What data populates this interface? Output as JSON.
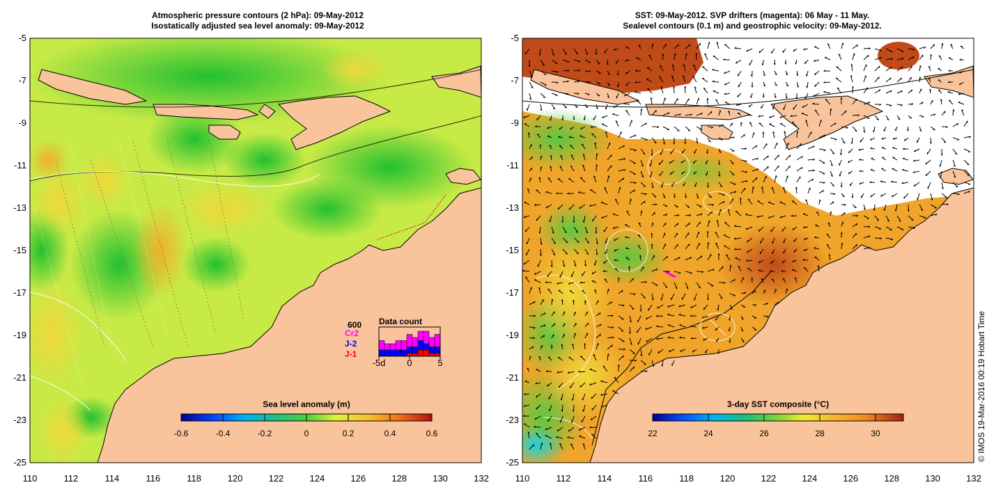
{
  "left_panel": {
    "title_line1": "Atmospheric pressure contours (2 hPa): 09-May-2012",
    "title_line2": "Isostatically adjusted sea level anomaly: 09-May-2012",
    "colorbar": {
      "label": "Sea level anomaly (m)",
      "ticks": [
        "-0.6",
        "-0.4",
        "-0.2",
        "0",
        "0.2",
        "0.4",
        "0.6"
      ],
      "tick_values": [
        -0.6,
        -0.4,
        -0.2,
        0,
        0.2,
        0.4,
        0.6
      ],
      "range": [
        -0.6,
        0.6
      ]
    },
    "data_count": {
      "title": "Data count",
      "max_label": "600",
      "legend": [
        {
          "name": "Cr2",
          "color": "#ff00ff"
        },
        {
          "name": "J-2",
          "color": "#0000ff"
        },
        {
          "name": "J-1",
          "color": "#ff0000"
        }
      ],
      "x_ticks": [
        "-5d",
        "0",
        "5"
      ],
      "x_tick_values": [
        -5,
        0,
        5
      ],
      "days": [
        -5,
        -4,
        -3,
        -2,
        -1,
        0,
        1,
        2,
        3,
        4,
        5
      ],
      "j1": [
        0,
        0,
        0,
        0,
        0,
        1,
        1,
        2,
        2,
        1,
        1
      ],
      "j2": [
        2,
        2,
        2,
        2,
        2,
        2,
        2,
        3,
        2,
        2,
        2
      ],
      "cr2": [
        3,
        2,
        2,
        3,
        3,
        4,
        3,
        3,
        4,
        3,
        4
      ]
    }
  },
  "right_panel": {
    "title_line1": "SST: 09-May-2012. SVP drifters (magenta): 06 May - 11 May.",
    "title_line2": "Sealevel contours (0.1 m) and geostrophic velocity: 09-May-2012.",
    "colorbar": {
      "label": "3-day SST composite (°C)",
      "ticks": [
        "22",
        "24",
        "26",
        "28",
        "30"
      ],
      "tick_values": [
        22,
        24,
        26,
        28,
        30
      ],
      "range": [
        22,
        31
      ]
    }
  },
  "axes": {
    "lat_ticks": [
      "-5",
      "-7",
      "-9",
      "-11",
      "-13",
      "-15",
      "-17",
      "-19",
      "-21",
      "-23",
      "-25"
    ],
    "lat_values": [
      -5,
      -7,
      -9,
      -11,
      -13,
      -15,
      -17,
      -19,
      -21,
      -23,
      -25
    ],
    "lon_ticks": [
      "110",
      "112",
      "114",
      "116",
      "118",
      "120",
      "122",
      "124",
      "126",
      "128",
      "130",
      "132"
    ],
    "lon_values": [
      110,
      112,
      114,
      116,
      118,
      120,
      122,
      124,
      126,
      128,
      130,
      132
    ],
    "lon_range": [
      110,
      132
    ],
    "lat_range": [
      -25,
      -5
    ]
  },
  "copyright": "© IMOS 19-Mar-2016 00:19 Hobart Time",
  "colors": {
    "land": "#f9c49b",
    "ocean_green": "#4fce3a",
    "ocean_yellow": "#e8f23a",
    "sst_orange": "#f19a22",
    "sst_dark": "#b84416"
  }
}
